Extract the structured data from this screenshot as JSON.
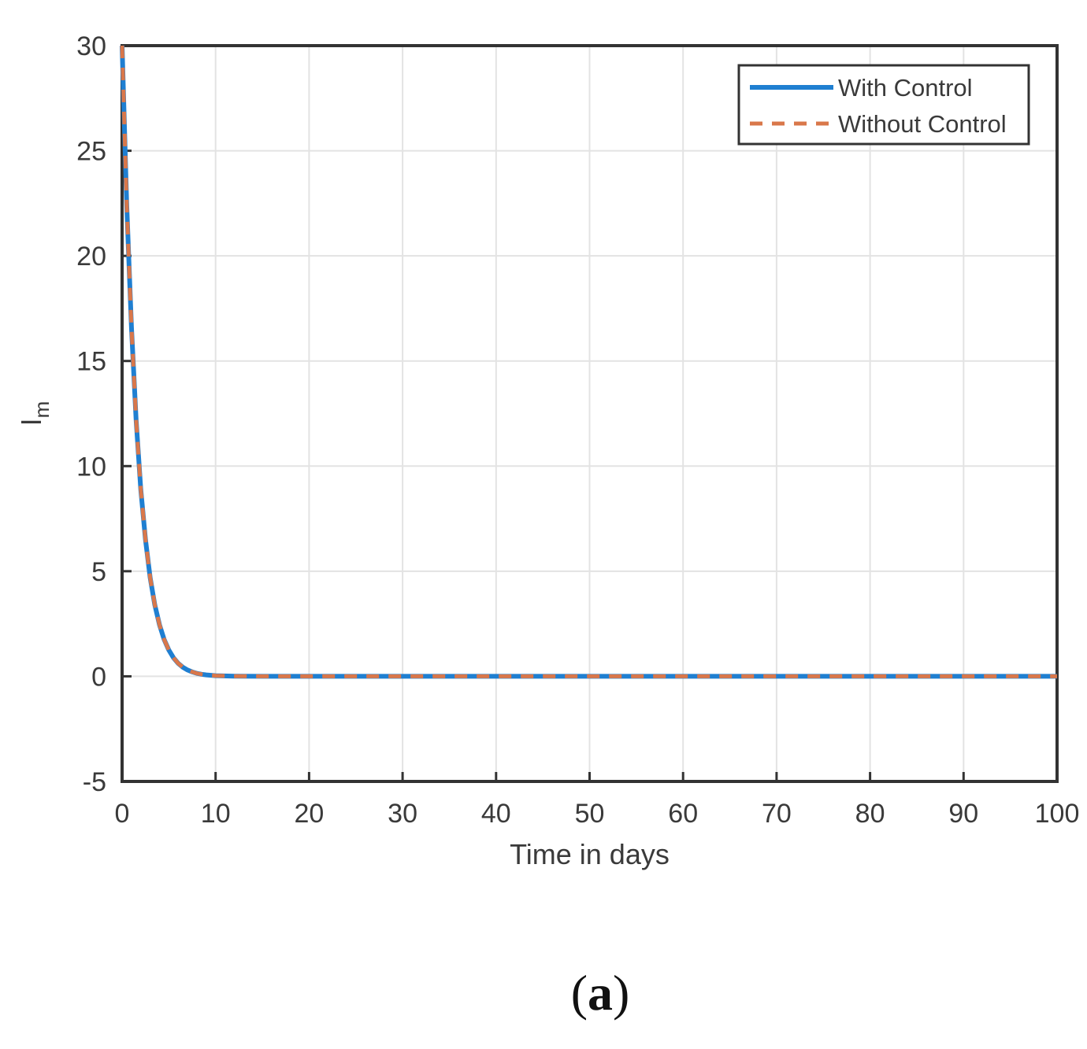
{
  "chart_data": {
    "type": "line",
    "xlabel": "Time in days",
    "ylabel_main": "I",
    "ylabel_sub": "m",
    "xlim": [
      0,
      100
    ],
    "ylim": [
      -5,
      30
    ],
    "xticks": [
      0,
      10,
      20,
      30,
      40,
      50,
      60,
      70,
      80,
      90,
      100
    ],
    "yticks": [
      -5,
      0,
      5,
      10,
      15,
      20,
      25,
      30
    ],
    "grid": true,
    "legend_position": "top-right",
    "x": [
      0,
      0.5,
      1,
      1.5,
      2,
      2.5,
      3,
      3.5,
      4,
      4.5,
      5,
      5.5,
      6,
      6.5,
      7,
      7.5,
      8,
      8.5,
      9,
      10,
      12,
      15,
      20,
      30,
      40,
      50,
      60,
      70,
      80,
      90,
      100
    ],
    "series": [
      {
        "name": "With Control",
        "color": "#1f7fd1",
        "style": "solid",
        "values": [
          30,
          22.4,
          16.6,
          12.2,
          8.9,
          6.5,
          4.7,
          3.4,
          2.45,
          1.75,
          1.25,
          0.88,
          0.62,
          0.43,
          0.3,
          0.21,
          0.14,
          0.1,
          0.07,
          0.03,
          0.01,
          0,
          0,
          0,
          0,
          0,
          0,
          0,
          0,
          0,
          0
        ]
      },
      {
        "name": "Without Control",
        "color": "#d9774a",
        "style": "dashed",
        "values": [
          30,
          22.4,
          16.6,
          12.2,
          8.9,
          6.5,
          4.7,
          3.4,
          2.45,
          1.75,
          1.25,
          0.88,
          0.62,
          0.43,
          0.3,
          0.21,
          0.14,
          0.1,
          0.07,
          0.03,
          0.01,
          0,
          0,
          0,
          0,
          0,
          0,
          0,
          0,
          0,
          0
        ]
      }
    ]
  },
  "panel_label": {
    "open": "(",
    "letter": "a",
    "close": ")"
  }
}
